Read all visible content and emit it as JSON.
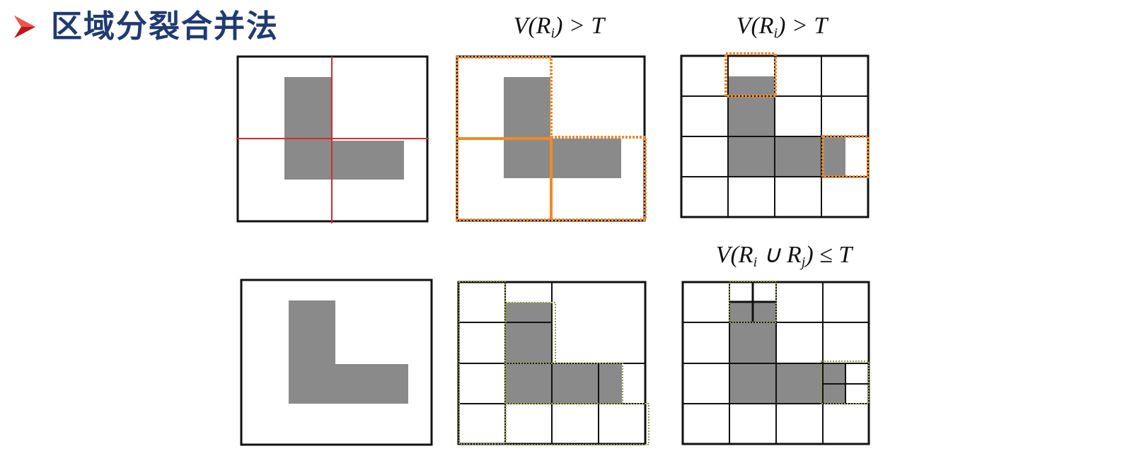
{
  "header": {
    "bullet_icon": "red-arrow-bullet-icon",
    "title": "区域分裂合并法"
  },
  "formulas": {
    "split_condition_1": {
      "prefix": "V(R",
      "sub": "i",
      "suffix": ") > T"
    },
    "split_condition_2": {
      "prefix": "V(R",
      "sub": "i",
      "suffix": ") > T"
    },
    "merge_condition": {
      "prefix": "V(R",
      "sub1": "i",
      "middle": " ∪ R",
      "sub2": "j",
      "suffix": ") ≤ T"
    }
  },
  "colors": {
    "title": "#1f3a73",
    "bullet": "#c0141a",
    "object_fill": "#8a8a8a",
    "split_line_red": "#d42a2a",
    "highlight_orange": "#f08a24",
    "merge_dotted_green": "#8aa04a",
    "frame": "#111111"
  },
  "panels": [
    {
      "id": "original-split-lines",
      "step": "first quadtree split (red cross)"
    },
    {
      "id": "split-test-quadrants",
      "step": "quadrants with V(Ri) > T highlighted"
    },
    {
      "id": "second-level-split",
      "step": "further split of inhomogeneous blocks"
    },
    {
      "id": "final-merged-result",
      "step": "segmented L-shaped region"
    },
    {
      "id": "merge-adjacent-blocks",
      "step": "adjacent homogeneous blocks merged"
    },
    {
      "id": "finest-split-and-merge",
      "step": "V(Ri ∪ Rj) ≤ T merge"
    }
  ]
}
